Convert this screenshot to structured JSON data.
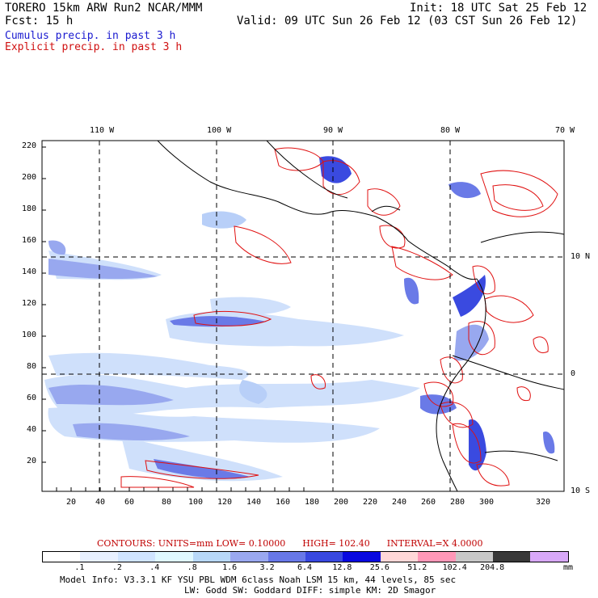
{
  "header": {
    "title_left": "TORERO  15km ARW   Run2    NCAR/MMM",
    "init": "Init: 18 UTC Sat 25 Feb 12",
    "fcst": "Fcst:   15 h",
    "valid": "Valid: 09 UTC Sun 26 Feb 12 (03 CST Sun 26 Feb 12)",
    "legend_cumulus": "Cumulus precip. in past 3 h",
    "legend_explicit": "Explicit precip. in past 3 h"
  },
  "colors": {
    "cumulus_text": "#1a1ad0",
    "explicit_text": "#d01010",
    "contour": "#e01010",
    "border": "#000000"
  },
  "map": {
    "lon_labels": [
      "110 W",
      "100 W",
      "90 W",
      "80 W",
      "70 W"
    ],
    "lat_labels": [
      "10 N",
      "0",
      "10 S"
    ],
    "y_ticks": [
      "220",
      "200",
      "180",
      "160",
      "140",
      "120",
      "100",
      "80",
      "60",
      "40",
      "20"
    ],
    "x_ticks": [
      "20",
      "40",
      "60",
      "80",
      "100",
      "120",
      "140",
      "160",
      "180",
      "200",
      "220",
      "240",
      "260",
      "280",
      "300",
      "320"
    ]
  },
  "contours_info": {
    "label": "CONTOURS:",
    "units": "UNITS=mm",
    "low": "LOW= 0.10000",
    "high": "HIGH= 102.40",
    "interval": "INTERVAL=X  4.0000"
  },
  "colorbar": {
    "colors": [
      "#ffffff",
      "#e8f0ff",
      "#d0e4ff",
      "#e0f8ff",
      "#b8d8f8",
      "#9aa8f0",
      "#6878e8",
      "#3848e0",
      "#0808e0",
      "#ffd8d8",
      "#ff98b8",
      "#c8c8c8",
      "#383838",
      "#d8a8f8"
    ],
    "labels": [
      ".1",
      ".2",
      ".4",
      ".8",
      "1.6",
      "3.2",
      "6.4",
      "12.8",
      "25.6",
      "51.2",
      "102.4",
      "204.8"
    ],
    "unit": "mm"
  },
  "footer": {
    "line1": "Model Info: V3.3.1   KF    YSU PBL  WDM 6class  Noah LSM  15 km,  44 levels,  85 sec",
    "line2": "LW: Godd SW: Goddard DIFF: simple KM: 2D Smagor"
  }
}
